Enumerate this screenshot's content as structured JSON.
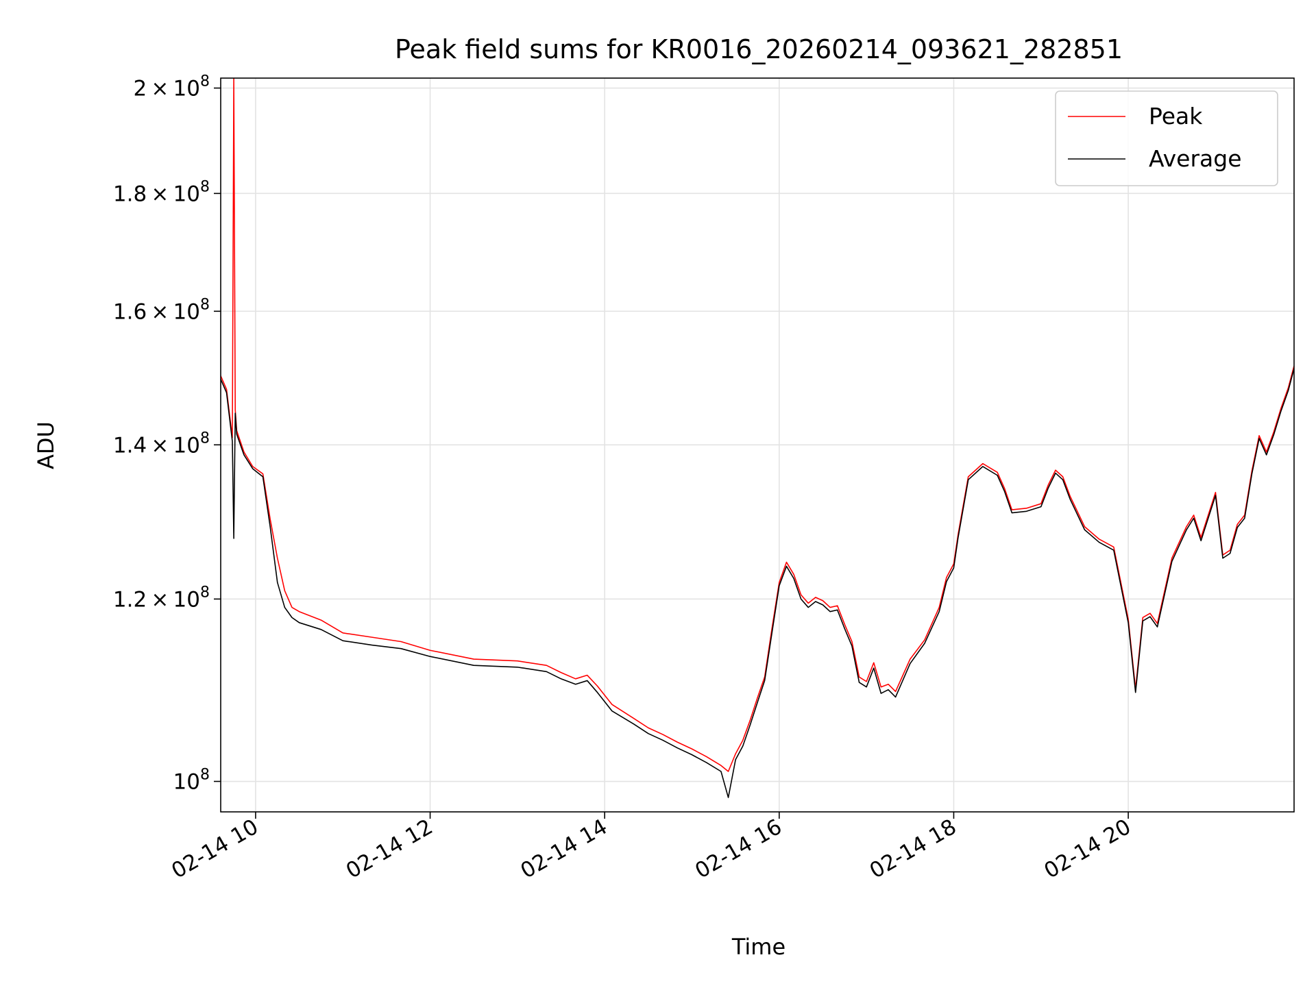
{
  "chart_data": {
    "type": "line",
    "title": "Peak field sums for KR0016_20260214_093621_282851",
    "xlabel": "Time",
    "ylabel": "ADU",
    "xscale": "time",
    "yscale": "log",
    "xlim": [
      "2026-02-14 09:36",
      "2026-02-14 21:54"
    ],
    "ylim": [
      97000000,
      202000000
    ],
    "x_ticks": [
      {
        "value": "2026-02-14 10:00",
        "label": "02-14 10"
      },
      {
        "value": "2026-02-14 12:00",
        "label": "02-14 12"
      },
      {
        "value": "2026-02-14 14:00",
        "label": "02-14 14"
      },
      {
        "value": "2026-02-14 16:00",
        "label": "02-14 16"
      },
      {
        "value": "2026-02-14 18:00",
        "label": "02-14 18"
      },
      {
        "value": "2026-02-14 20:00",
        "label": "02-14 20"
      }
    ],
    "y_ticks": [
      {
        "value": 100000000,
        "mantissa": "",
        "exponent": "8",
        "base": "10"
      },
      {
        "value": 120000000,
        "mantissa": "1.2",
        "exponent": "8",
        "base": "10"
      },
      {
        "value": 140000000,
        "mantissa": "1.4",
        "exponent": "8",
        "base": "10"
      },
      {
        "value": 160000000,
        "mantissa": "1.6",
        "exponent": "8",
        "base": "10"
      },
      {
        "value": 180000000,
        "mantissa": "1.8",
        "exponent": "8",
        "base": "10"
      },
      {
        "value": 200000000,
        "mantissa": "2",
        "exponent": "8",
        "base": "10"
      }
    ],
    "grid": true,
    "legend_position": "top-right",
    "series": [
      {
        "name": "Peak",
        "color": "#ff0000",
        "x": [
          "2026-02-14 09:36",
          "2026-02-14 09:40",
          "2026-02-14 09:44",
          "2026-02-14 09:45",
          "2026-02-14 09:46",
          "2026-02-14 09:47",
          "2026-02-14 09:52",
          "2026-02-14 09:58",
          "2026-02-14 10:05",
          "2026-02-14 10:10",
          "2026-02-14 10:15",
          "2026-02-14 10:20",
          "2026-02-14 10:25",
          "2026-02-14 10:30",
          "2026-02-14 10:45",
          "2026-02-14 11:00",
          "2026-02-14 11:20",
          "2026-02-14 11:40",
          "2026-02-14 12:00",
          "2026-02-14 12:30",
          "2026-02-14 13:00",
          "2026-02-14 13:20",
          "2026-02-14 13:30",
          "2026-02-14 13:40",
          "2026-02-14 13:48",
          "2026-02-14 13:55",
          "2026-02-14 14:05",
          "2026-02-14 14:20",
          "2026-02-14 14:30",
          "2026-02-14 14:40",
          "2026-02-14 14:50",
          "2026-02-14 15:00",
          "2026-02-14 15:10",
          "2026-02-14 15:20",
          "2026-02-14 15:25",
          "2026-02-14 15:30",
          "2026-02-14 15:35",
          "2026-02-14 15:40",
          "2026-02-14 15:45",
          "2026-02-14 15:50",
          "2026-02-14 15:55",
          "2026-02-14 16:00",
          "2026-02-14 16:05",
          "2026-02-14 16:10",
          "2026-02-14 16:15",
          "2026-02-14 16:20",
          "2026-02-14 16:25",
          "2026-02-14 16:30",
          "2026-02-14 16:35",
          "2026-02-14 16:40",
          "2026-02-14 16:45",
          "2026-02-14 16:50",
          "2026-02-14 16:55",
          "2026-02-14 17:00",
          "2026-02-14 17:05",
          "2026-02-14 17:10",
          "2026-02-14 17:15",
          "2026-02-14 17:20",
          "2026-02-14 17:30",
          "2026-02-14 17:40",
          "2026-02-14 17:50",
          "2026-02-14 17:55",
          "2026-02-14 18:00",
          "2026-02-14 18:03",
          "2026-02-14 18:10",
          "2026-02-14 18:20",
          "2026-02-14 18:30",
          "2026-02-14 18:35",
          "2026-02-14 18:40",
          "2026-02-14 18:50",
          "2026-02-14 19:00",
          "2026-02-14 19:05",
          "2026-02-14 19:10",
          "2026-02-14 19:15",
          "2026-02-14 19:20",
          "2026-02-14 19:30",
          "2026-02-14 19:40",
          "2026-02-14 19:50",
          "2026-02-14 20:00",
          "2026-02-14 20:05",
          "2026-02-14 20:10",
          "2026-02-14 20:15",
          "2026-02-14 20:20",
          "2026-02-14 20:30",
          "2026-02-14 20:40",
          "2026-02-14 20:45",
          "2026-02-14 20:50",
          "2026-02-14 21:00",
          "2026-02-14 21:05",
          "2026-02-14 21:10",
          "2026-02-14 21:15",
          "2026-02-14 21:20",
          "2026-02-14 21:25",
          "2026-02-14 21:30",
          "2026-02-14 21:35",
          "2026-02-14 21:40",
          "2026-02-14 21:45",
          "2026-02-14 21:50",
          "2026-02-14 21:54"
        ],
        "y": [
          150000000,
          148000000,
          141000000,
          202000000,
          145000000,
          142000000,
          139000000,
          137000000,
          136000000,
          130000000,
          125000000,
          121000000,
          119000000,
          118500000,
          117500000,
          116000000,
          115500000,
          115000000,
          114000000,
          113000000,
          112800000,
          112300000,
          111500000,
          110800000,
          111200000,
          110000000,
          108000000,
          106500000,
          105500000,
          104800000,
          104000000,
          103300000,
          102500000,
          101600000,
          101000000,
          102800000,
          104200000,
          106300000,
          108700000,
          111000000,
          116500000,
          122000000,
          124500000,
          123000000,
          120500000,
          119500000,
          120200000,
          119800000,
          119000000,
          119200000,
          117000000,
          115000000,
          111000000,
          110500000,
          112600000,
          109900000,
          110200000,
          109400000,
          113000000,
          115200000,
          119000000,
          122600000,
          124300000,
          128000000,
          135600000,
          137400000,
          136200000,
          134000000,
          131200000,
          131400000,
          132000000,
          134500000,
          136500000,
          135600000,
          133000000,
          129000000,
          127400000,
          126400000,
          117600000,
          109700000,
          117800000,
          118300000,
          117100000,
          125000000,
          129000000,
          130500000,
          127600000,
          133500000,
          125400000,
          126000000,
          129300000,
          130500000,
          136400000,
          141300000,
          139000000,
          141800000,
          145200000,
          148200000,
          151500000
        ]
      },
      {
        "name": "Average",
        "color": "#000000",
        "x": [
          "2026-02-14 09:36",
          "2026-02-14 09:40",
          "2026-02-14 09:44",
          "2026-02-14 09:45",
          "2026-02-14 09:46",
          "2026-02-14 09:47",
          "2026-02-14 09:52",
          "2026-02-14 09:58",
          "2026-02-14 10:05",
          "2026-02-14 10:10",
          "2026-02-14 10:15",
          "2026-02-14 10:20",
          "2026-02-14 10:25",
          "2026-02-14 10:30",
          "2026-02-14 10:45",
          "2026-02-14 11:00",
          "2026-02-14 11:20",
          "2026-02-14 11:40",
          "2026-02-14 12:00",
          "2026-02-14 12:30",
          "2026-02-14 13:00",
          "2026-02-14 13:20",
          "2026-02-14 13:30",
          "2026-02-14 13:40",
          "2026-02-14 13:48",
          "2026-02-14 13:55",
          "2026-02-14 14:05",
          "2026-02-14 14:20",
          "2026-02-14 14:30",
          "2026-02-14 14:40",
          "2026-02-14 14:50",
          "2026-02-14 15:00",
          "2026-02-14 15:10",
          "2026-02-14 15:20",
          "2026-02-14 15:25",
          "2026-02-14 15:30",
          "2026-02-14 15:35",
          "2026-02-14 15:40",
          "2026-02-14 15:45",
          "2026-02-14 15:50",
          "2026-02-14 15:55",
          "2026-02-14 16:00",
          "2026-02-14 16:05",
          "2026-02-14 16:10",
          "2026-02-14 16:15",
          "2026-02-14 16:20",
          "2026-02-14 16:25",
          "2026-02-14 16:30",
          "2026-02-14 16:35",
          "2026-02-14 16:40",
          "2026-02-14 16:45",
          "2026-02-14 16:50",
          "2026-02-14 16:55",
          "2026-02-14 17:00",
          "2026-02-14 17:05",
          "2026-02-14 17:10",
          "2026-02-14 17:15",
          "2026-02-14 17:20",
          "2026-02-14 17:30",
          "2026-02-14 17:40",
          "2026-02-14 17:50",
          "2026-02-14 17:55",
          "2026-02-14 18:00",
          "2026-02-14 18:03",
          "2026-02-14 18:10",
          "2026-02-14 18:20",
          "2026-02-14 18:30",
          "2026-02-14 18:35",
          "2026-02-14 18:40",
          "2026-02-14 18:50",
          "2026-02-14 19:00",
          "2026-02-14 19:05",
          "2026-02-14 19:10",
          "2026-02-14 19:15",
          "2026-02-14 19:20",
          "2026-02-14 19:30",
          "2026-02-14 19:40",
          "2026-02-14 19:50",
          "2026-02-14 20:00",
          "2026-02-14 20:05",
          "2026-02-14 20:10",
          "2026-02-14 20:15",
          "2026-02-14 20:20",
          "2026-02-14 20:30",
          "2026-02-14 20:40",
          "2026-02-14 20:45",
          "2026-02-14 20:50",
          "2026-02-14 21:00",
          "2026-02-14 21:05",
          "2026-02-14 21:10",
          "2026-02-14 21:15",
          "2026-02-14 21:20",
          "2026-02-14 21:25",
          "2026-02-14 21:30",
          "2026-02-14 21:35",
          "2026-02-14 21:40",
          "2026-02-14 21:45",
          "2026-02-14 21:50",
          "2026-02-14 21:54"
        ],
        "y": [
          149500000,
          147500000,
          140500000,
          127500000,
          144500000,
          141500000,
          138600000,
          136700000,
          135600000,
          129000000,
          122000000,
          119000000,
          117800000,
          117200000,
          116400000,
          115100000,
          114600000,
          114200000,
          113300000,
          112300000,
          112100000,
          111600000,
          110800000,
          110200000,
          110600000,
          109300000,
          107300000,
          105900000,
          104900000,
          104200000,
          103400000,
          102700000,
          101900000,
          101000000,
          98400000,
          102200000,
          103600000,
          105800000,
          108200000,
          110600000,
          116000000,
          121600000,
          124000000,
          122500000,
          120000000,
          119000000,
          119700000,
          119300000,
          118500000,
          118700000,
          116500000,
          114500000,
          110400000,
          109900000,
          112000000,
          109200000,
          109600000,
          108800000,
          112500000,
          114800000,
          118500000,
          122100000,
          123800000,
          127600000,
          135200000,
          137000000,
          135800000,
          133600000,
          130800000,
          131000000,
          131600000,
          134100000,
          136100000,
          135200000,
          132600000,
          128600000,
          127000000,
          126000000,
          117200000,
          109300000,
          117400000,
          117900000,
          116700000,
          124600000,
          128600000,
          130100000,
          127200000,
          133100000,
          125000000,
          125600000,
          128900000,
          130100000,
          136000000,
          140900000,
          138600000,
          141400000,
          144800000,
          147800000,
          151100000
        ]
      }
    ]
  }
}
